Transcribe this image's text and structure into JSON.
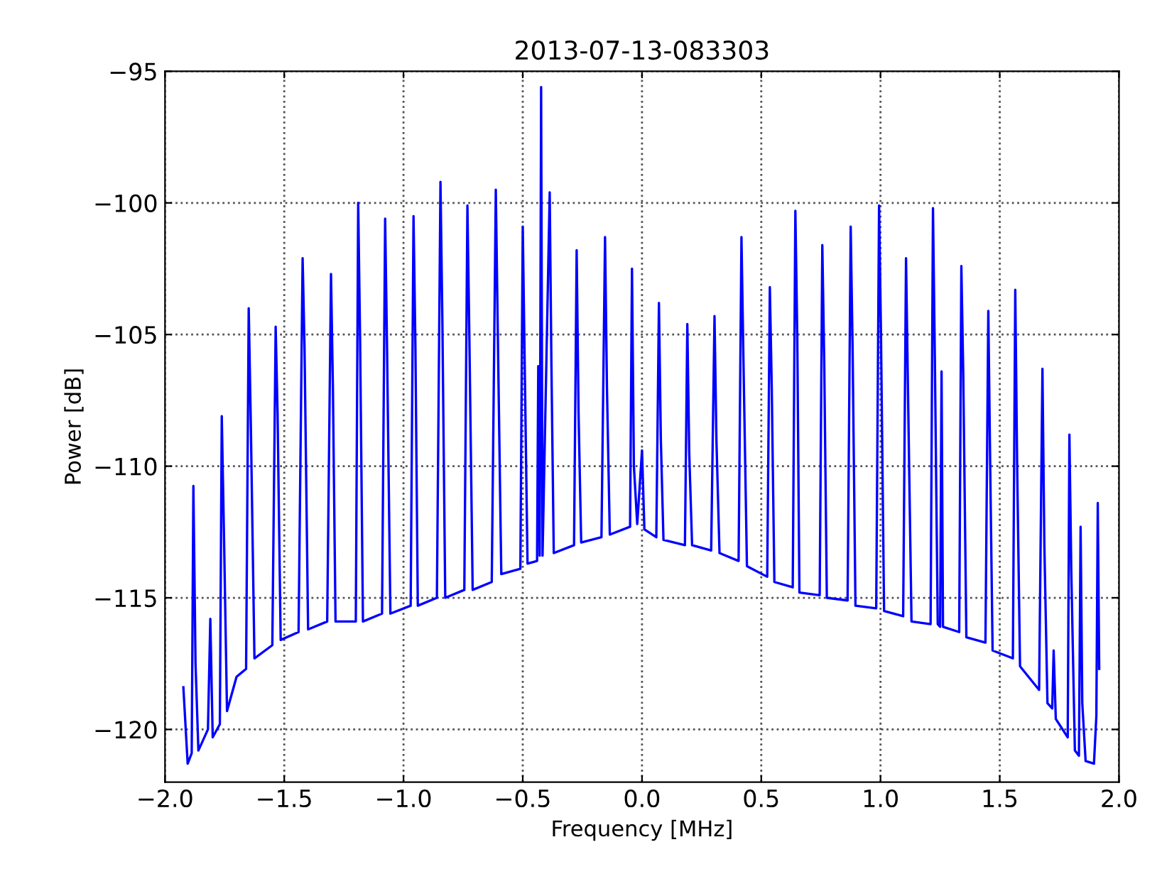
{
  "chart_data": {
    "type": "line",
    "title": "2013-07-13-083303",
    "xlabel": "Frequency [MHz]",
    "ylabel": "Power [dB]",
    "xlim": [
      -2.0,
      2.0
    ],
    "ylim": [
      -122,
      -95
    ],
    "xticks": [
      {
        "value": -2.0,
        "label": "−2.0"
      },
      {
        "value": -1.5,
        "label": "−1.5"
      },
      {
        "value": -1.0,
        "label": "−1.0"
      },
      {
        "value": -0.5,
        "label": "−0.5"
      },
      {
        "value": 0.0,
        "label": "0.0"
      },
      {
        "value": 0.5,
        "label": "0.5"
      },
      {
        "value": 1.0,
        "label": "1.0"
      },
      {
        "value": 1.5,
        "label": "1.5"
      },
      {
        "value": 2.0,
        "label": "2.0"
      }
    ],
    "yticks": [
      {
        "value": -120,
        "label": "−120"
      },
      {
        "value": -115,
        "label": "−115"
      },
      {
        "value": -110,
        "label": "−110"
      },
      {
        "value": -105,
        "label": "−105"
      },
      {
        "value": -100,
        "label": "−100"
      },
      {
        "value": -95,
        "label": "−95"
      }
    ],
    "grid": true,
    "line_style": "solid",
    "marker": "none",
    "series": [
      {
        "color": "#0000ff",
        "x": [
          -1.923,
          -1.905,
          -1.888,
          -1.881,
          -1.872,
          -1.86,
          -1.82,
          -1.81,
          -1.8,
          -1.77,
          -1.762,
          -1.752,
          -1.74,
          -1.7,
          -1.66,
          -1.649,
          -1.64,
          -1.625,
          -1.55,
          -1.536,
          -1.528,
          -1.515,
          -1.44,
          -1.423,
          -1.415,
          -1.4,
          -1.32,
          -1.304,
          -1.296,
          -1.285,
          -1.2,
          -1.19,
          -1.182,
          -1.17,
          -1.09,
          -1.077,
          -1.069,
          -1.055,
          -0.97,
          -0.958,
          -0.95,
          -0.94,
          -0.86,
          -0.845,
          -0.837,
          -0.825,
          -0.745,
          -0.732,
          -0.724,
          -0.71,
          -0.63,
          -0.613,
          -0.605,
          -0.59,
          -0.51,
          -0.5,
          -0.492,
          -0.48,
          -0.44,
          -0.435,
          -0.429,
          -0.423,
          -0.417,
          -0.387,
          -0.38,
          -0.37,
          -0.285,
          -0.274,
          -0.266,
          -0.255,
          -0.17,
          -0.155,
          -0.147,
          -0.135,
          -0.05,
          -0.042,
          -0.034,
          -0.02,
          0.0,
          0.01,
          0.06,
          0.071,
          0.079,
          0.09,
          0.18,
          0.19,
          0.198,
          0.21,
          0.29,
          0.304,
          0.312,
          0.325,
          0.405,
          0.417,
          0.425,
          0.44,
          0.525,
          0.536,
          0.544,
          0.555,
          0.632,
          0.643,
          0.651,
          0.66,
          0.745,
          0.756,
          0.764,
          0.775,
          0.862,
          0.875,
          0.883,
          0.895,
          0.982,
          0.994,
          1.002,
          1.015,
          1.095,
          1.107,
          1.115,
          1.13,
          1.21,
          1.22,
          1.228,
          1.24,
          1.25,
          1.256,
          1.262,
          1.33,
          1.339,
          1.347,
          1.36,
          1.44,
          1.452,
          1.46,
          1.47,
          1.555,
          1.565,
          1.573,
          1.585,
          1.665,
          1.679,
          1.687,
          1.7,
          1.72,
          1.726,
          1.735,
          1.785,
          1.792,
          1.8,
          1.815,
          1.832,
          1.839,
          1.846,
          1.86,
          1.895,
          1.905,
          1.911,
          1.917
        ],
        "values": [
          -118.4,
          -121.3,
          -120.9,
          -110.75,
          -117.5,
          -120.8,
          -120.0,
          -115.8,
          -120.3,
          -119.8,
          -108.1,
          -113.0,
          -119.3,
          -118.0,
          -117.7,
          -104.0,
          -108.5,
          -117.3,
          -116.8,
          -104.7,
          -108.0,
          -116.6,
          -116.3,
          -102.1,
          -105.5,
          -116.2,
          -115.9,
          -102.7,
          -107.0,
          -115.9,
          -115.9,
          -100.0,
          -105.2,
          -115.9,
          -115.6,
          -100.6,
          -105.5,
          -115.6,
          -115.3,
          -100.5,
          -105.5,
          -115.3,
          -115.0,
          -99.2,
          -104.5,
          -115.0,
          -114.7,
          -100.1,
          -105.0,
          -114.7,
          -114.4,
          -99.5,
          -104.7,
          -114.1,
          -113.9,
          -100.9,
          -106.0,
          -113.7,
          -113.6,
          -106.2,
          -113.4,
          -95.6,
          -113.4,
          -99.6,
          -106.0,
          -113.3,
          -113.0,
          -101.8,
          -108.0,
          -112.9,
          -112.7,
          -101.3,
          -107.0,
          -112.6,
          -112.3,
          -102.5,
          -110.0,
          -112.2,
          -109.4,
          -112.4,
          -112.7,
          -103.8,
          -109.0,
          -112.8,
          -113.0,
          -104.6,
          -109.5,
          -113.0,
          -113.2,
          -104.3,
          -109.0,
          -113.3,
          -113.6,
          -101.3,
          -105.8,
          -113.8,
          -114.2,
          -103.2,
          -107.0,
          -114.4,
          -114.6,
          -100.3,
          -105.0,
          -114.8,
          -114.9,
          -101.6,
          -106.0,
          -115.0,
          -115.1,
          -100.9,
          -105.5,
          -115.3,
          -115.4,
          -100.1,
          -105.0,
          -115.5,
          -115.7,
          -102.1,
          -107.0,
          -115.9,
          -116.0,
          -100.2,
          -106.0,
          -116.0,
          -116.1,
          -106.4,
          -116.1,
          -116.3,
          -102.4,
          -106.5,
          -116.5,
          -116.7,
          -104.1,
          -110.0,
          -117.0,
          -117.3,
          -103.3,
          -110.0,
          -117.6,
          -118.5,
          -106.3,
          -113.0,
          -119.0,
          -119.2,
          -117.0,
          -119.6,
          -120.3,
          -108.8,
          -114.0,
          -120.8,
          -121.0,
          -112.3,
          -119.0,
          -121.2,
          -121.3,
          -119.5,
          -111.4,
          -117.7
        ]
      }
    ]
  }
}
